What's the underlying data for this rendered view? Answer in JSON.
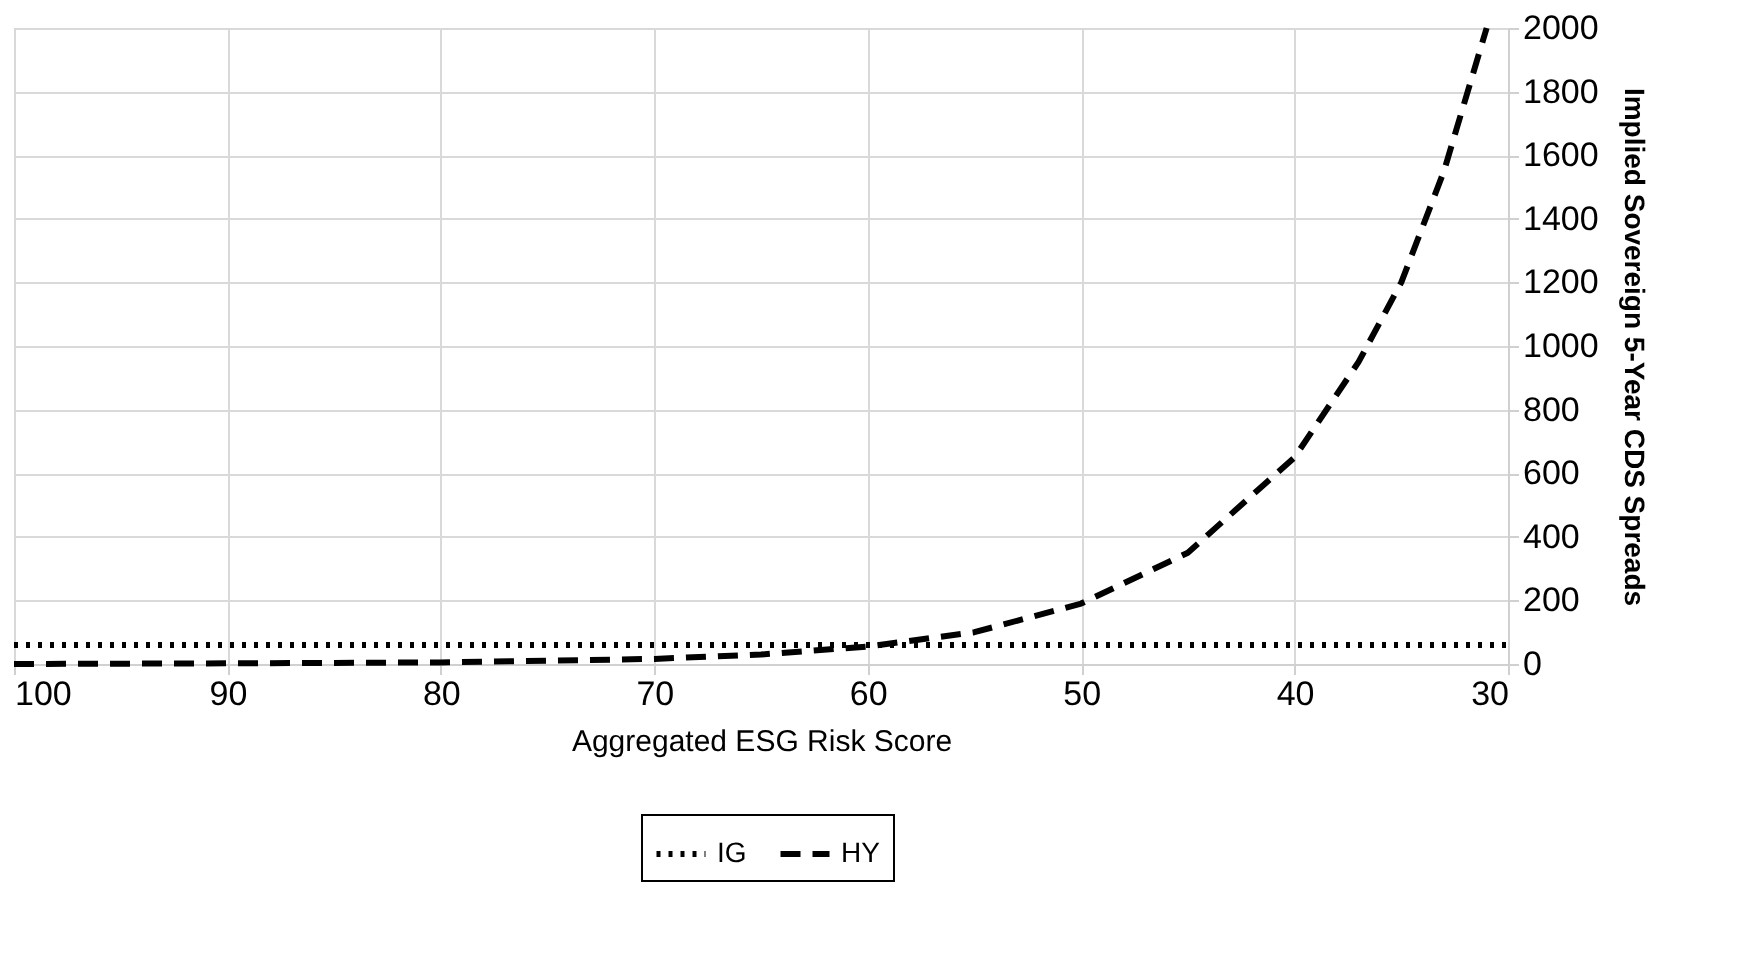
{
  "chart_data": {
    "type": "line",
    "xlabel": "Aggregated ESG Risk Score",
    "ylabel": "Implied Sovereign 5-Year CDS Spreads",
    "xlim": [
      100,
      30
    ],
    "xticks": [
      100,
      90,
      80,
      70,
      60,
      50,
      40,
      30
    ],
    "ylim": [
      0,
      2000
    ],
    "yticks": [
      0,
      200,
      400,
      600,
      800,
      1000,
      1200,
      1400,
      1600,
      1800,
      2000
    ],
    "grid": true,
    "legend": "bottom",
    "marker": "none",
    "series": [
      {
        "name": "IG",
        "color": "#000000",
        "line_style": "dotted",
        "x": [
          100,
          30
        ],
        "values": [
          60,
          60
        ]
      },
      {
        "name": "HY",
        "color": "#000000",
        "line_style": "dashed",
        "x": [
          100,
          90,
          80,
          70,
          65,
          60,
          55,
          50,
          45,
          40,
          37,
          35,
          33,
          31
        ],
        "values": [
          0,
          2,
          5,
          16,
          30,
          55,
          100,
          190,
          350,
          650,
          950,
          1200,
          1550,
          2000
        ]
      }
    ]
  }
}
